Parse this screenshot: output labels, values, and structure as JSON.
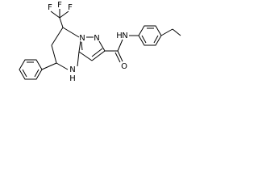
{
  "atoms": [
    {
      "label": "F"
    },
    {
      "label": "F"
    },
    {
      "label": "F"
    },
    {
      "label": "N"
    },
    {
      "label": "N"
    },
    {
      "label": "N"
    },
    {
      "label": "H"
    },
    {
      "label": "O"
    },
    {
      "label": "N"
    },
    {
      "label": "H"
    }
  ]
}
